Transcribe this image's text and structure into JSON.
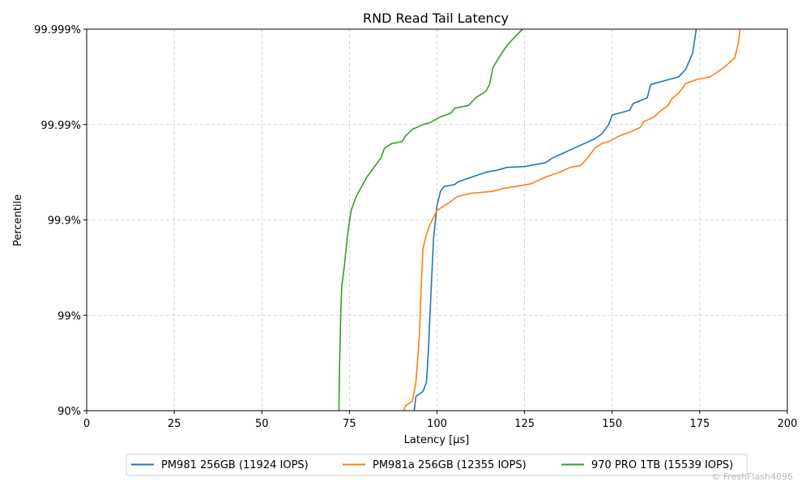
{
  "chart_data": {
    "type": "line",
    "title": "RND Read Tail Latency",
    "xlabel": "Latency [µs]",
    "ylabel": "Percentile",
    "xlim": [
      0,
      200
    ],
    "x_ticks": [
      0,
      25,
      50,
      75,
      100,
      125,
      150,
      175,
      200
    ],
    "y_scale": "nines (logit-like)",
    "y_nines_range": [
      1,
      5
    ],
    "y_ticks": [
      {
        "nines": 1,
        "label": "90%"
      },
      {
        "nines": 2,
        "label": "99%"
      },
      {
        "nines": 3,
        "label": "99.9%"
      },
      {
        "nines": 4,
        "label": "99.99%"
      },
      {
        "nines": 5,
        "label": "99.999%"
      }
    ],
    "grid": true,
    "legend_position": "bottom-center",
    "series": [
      {
        "name": "PM981 256GB (11924 IOPS)",
        "color": "#1f77b4",
        "points": [
          [
            93.5,
            1.0
          ],
          [
            94,
            1.15
          ],
          [
            96,
            1.2
          ],
          [
            97,
            1.3
          ],
          [
            97.5,
            1.6
          ],
          [
            98,
            2.0
          ],
          [
            98.5,
            2.4
          ],
          [
            99,
            2.8
          ],
          [
            100,
            3.15
          ],
          [
            101,
            3.3
          ],
          [
            102,
            3.35
          ],
          [
            105,
            3.37
          ],
          [
            106,
            3.4
          ],
          [
            110,
            3.45
          ],
          [
            114,
            3.5
          ],
          [
            117,
            3.52
          ],
          [
            120,
            3.55
          ],
          [
            125,
            3.56
          ],
          [
            128,
            3.58
          ],
          [
            131,
            3.6
          ],
          [
            133,
            3.65
          ],
          [
            136,
            3.7
          ],
          [
            139,
            3.75
          ],
          [
            142,
            3.8
          ],
          [
            145,
            3.85
          ],
          [
            147,
            3.9
          ],
          [
            149,
            4.0
          ],
          [
            150,
            4.1
          ],
          [
            155,
            4.15
          ],
          [
            156,
            4.22
          ],
          [
            160,
            4.28
          ],
          [
            161,
            4.42
          ],
          [
            165,
            4.46
          ],
          [
            169,
            4.5
          ],
          [
            171,
            4.58
          ],
          [
            173,
            4.75
          ],
          [
            174,
            5.0
          ]
        ]
      },
      {
        "name": "PM981a 256GB (12355 IOPS)",
        "color": "#ff7f0e",
        "points": [
          [
            90.5,
            1.0
          ],
          [
            91,
            1.05
          ],
          [
            93,
            1.1
          ],
          [
            94,
            1.3
          ],
          [
            95,
            1.8
          ],
          [
            95.5,
            2.3
          ],
          [
            96,
            2.7
          ],
          [
            97,
            2.85
          ],
          [
            98,
            2.95
          ],
          [
            100,
            3.1
          ],
          [
            103,
            3.17
          ],
          [
            106,
            3.25
          ],
          [
            110,
            3.28
          ],
          [
            116,
            3.3
          ],
          [
            119,
            3.33
          ],
          [
            124,
            3.36
          ],
          [
            127,
            3.38
          ],
          [
            131,
            3.45
          ],
          [
            135,
            3.5
          ],
          [
            138,
            3.55
          ],
          [
            141,
            3.57
          ],
          [
            143,
            3.65
          ],
          [
            145,
            3.75
          ],
          [
            147,
            3.8
          ],
          [
            149,
            3.82
          ],
          [
            152,
            3.88
          ],
          [
            155,
            3.92
          ],
          [
            158,
            3.97
          ],
          [
            159,
            4.03
          ],
          [
            162,
            4.08
          ],
          [
            164,
            4.15
          ],
          [
            166,
            4.2
          ],
          [
            167,
            4.27
          ],
          [
            169,
            4.33
          ],
          [
            171,
            4.43
          ],
          [
            174,
            4.47
          ],
          [
            178,
            4.5
          ],
          [
            182,
            4.6
          ],
          [
            185,
            4.7
          ],
          [
            186,
            4.85
          ],
          [
            186.5,
            5.0
          ]
        ]
      },
      {
        "name": "970 PRO 1TB (15539 IOPS)",
        "color": "#2ca02c",
        "points": [
          [
            72,
            1.0
          ],
          [
            72.2,
            1.5
          ],
          [
            72.5,
            2.0
          ],
          [
            72.8,
            2.3
          ],
          [
            73.5,
            2.5
          ],
          [
            74.5,
            2.85
          ],
          [
            75.5,
            3.1
          ],
          [
            77,
            3.25
          ],
          [
            78.5,
            3.35
          ],
          [
            80,
            3.45
          ],
          [
            82,
            3.55
          ],
          [
            84,
            3.65
          ],
          [
            85,
            3.75
          ],
          [
            87,
            3.8
          ],
          [
            90,
            3.82
          ],
          [
            91,
            3.88
          ],
          [
            93,
            3.95
          ],
          [
            96,
            4.0
          ],
          [
            98,
            4.02
          ],
          [
            101,
            4.08
          ],
          [
            104,
            4.12
          ],
          [
            105,
            4.17
          ],
          [
            109,
            4.2
          ],
          [
            111,
            4.28
          ],
          [
            114,
            4.35
          ],
          [
            115,
            4.42
          ],
          [
            116,
            4.6
          ],
          [
            118,
            4.72
          ],
          [
            120,
            4.83
          ],
          [
            123,
            4.95
          ],
          [
            124.5,
            5.0
          ]
        ]
      }
    ]
  },
  "watermark": "© FreshFlash4096"
}
